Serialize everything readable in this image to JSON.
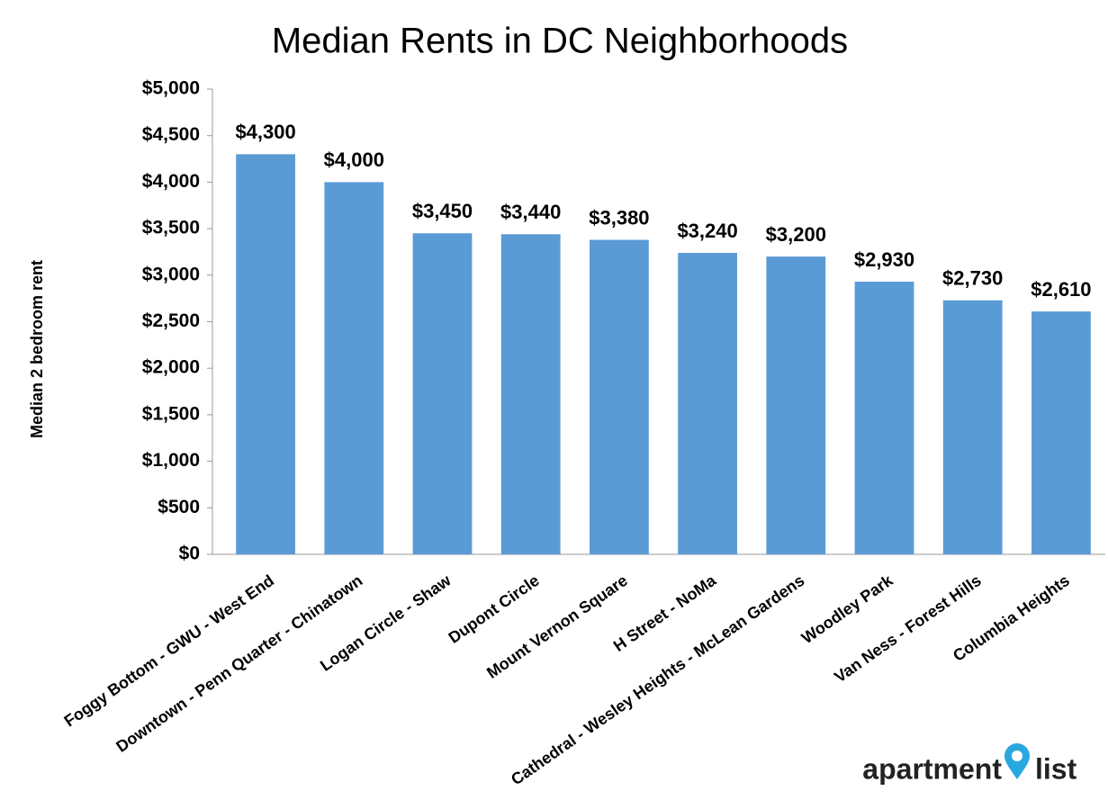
{
  "chart_data": {
    "type": "bar",
    "title": "Median Rents in DC Neighborhoods",
    "y_label": "Median 2 bedroom rent",
    "categories": [
      "Foggy Bottom - GWU - West End",
      "Downtown - Penn Quarter - Chinatown",
      "Logan Circle - Shaw",
      "Dupont Circle",
      "Mount Vernon Square",
      "H Street - NoMa",
      "Cathedral - Wesley Heights - McLean Gardens",
      "Woodley Park",
      "Van Ness - Forest Hills",
      "Columbia Heights"
    ],
    "values": [
      4300,
      4000,
      3450,
      3440,
      3380,
      3240,
      3200,
      2930,
      2730,
      2610
    ],
    "value_labels": [
      "$4,300",
      "$4,000",
      "$3,450",
      "$3,440",
      "$3,380",
      "$3,240",
      "$3,200",
      "$2,930",
      "$2,730",
      "$2,610"
    ],
    "color": "#5b9bd5",
    "ylim": [
      0,
      5000
    ],
    "yticks": [
      {
        "value": 0,
        "label": "$0"
      },
      {
        "value": 500,
        "label": "$500"
      },
      {
        "value": 1000,
        "label": "$1,000"
      },
      {
        "value": 1500,
        "label": "$1,500"
      },
      {
        "value": 2000,
        "label": "$2,000"
      },
      {
        "value": 2500,
        "label": "$2,500"
      },
      {
        "value": 3000,
        "label": "$3,000"
      },
      {
        "value": 3500,
        "label": "$3,500"
      },
      {
        "value": 4000,
        "label": "$4,000"
      },
      {
        "value": 4500,
        "label": "$4,500"
      },
      {
        "value": 5000,
        "label": "$5,000"
      }
    ],
    "grid": false
  },
  "logo": {
    "left": "apartment",
    "right": "list"
  }
}
